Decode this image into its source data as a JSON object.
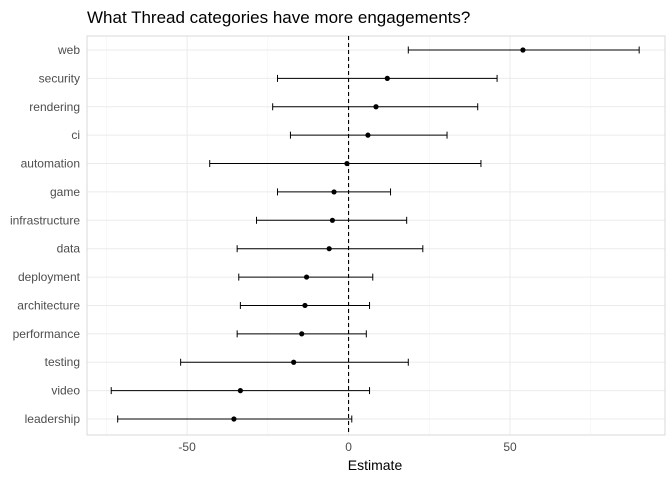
{
  "chart_data": {
    "type": "scatter",
    "title": "What Thread categories have more engagements?",
    "xlabel": "Estimate",
    "ylabel": "",
    "xlim": [
      -81,
      98
    ],
    "x_ticks": [
      -50,
      0,
      50
    ],
    "x_tick_labels": [
      "-50",
      "0",
      "50"
    ],
    "reference_line": {
      "x": 0,
      "style": "dashed"
    },
    "grid": true,
    "legend": "none",
    "categories": [
      "web",
      "security",
      "rendering",
      "ci",
      "automation",
      "game",
      "infrastructure",
      "data",
      "deployment",
      "architecture",
      "performance",
      "testing",
      "video",
      "leadership"
    ],
    "estimate": [
      54,
      12,
      8.5,
      6,
      -0.5,
      -4.5,
      -5,
      -6,
      -13,
      -13.5,
      -14.5,
      -17,
      -33.5,
      -35.5
    ],
    "lower": [
      18.5,
      -22,
      -23.5,
      -18,
      -43,
      -22,
      -28.5,
      -34.5,
      -34,
      -33.5,
      -34.5,
      -52,
      -73.5,
      -71.5
    ],
    "upper": [
      90,
      46,
      40,
      30.5,
      41,
      13,
      18,
      23,
      7.5,
      6.5,
      5.5,
      18.5,
      6.5,
      1
    ]
  }
}
